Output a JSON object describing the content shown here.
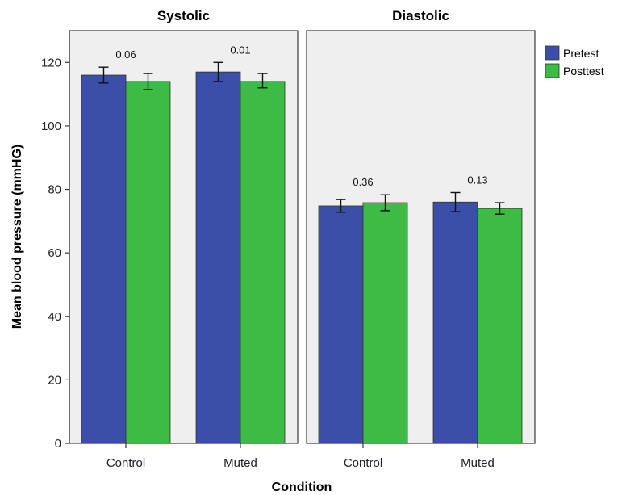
{
  "chart_data": {
    "type": "bar",
    "xlabel": "Condition",
    "ylabel": "Mean blood pressure (mmHG)",
    "ylim": [
      0,
      130
    ],
    "yticks": [
      0,
      20,
      40,
      60,
      80,
      100,
      120
    ],
    "legend": {
      "position": "top-right"
    },
    "colors": {
      "Pretest": "#3b4fa8",
      "Posttest": "#3dbb45"
    },
    "series_names": [
      "Pretest",
      "Posttest"
    ],
    "categories": [
      "Control",
      "Muted"
    ],
    "panels": [
      {
        "title": "Systolic",
        "series": [
          {
            "name": "Pretest",
            "values": [
              116,
              117
            ],
            "error_low": [
              113.5,
              114
            ],
            "error_high": [
              118.5,
              120
            ]
          },
          {
            "name": "Posttest",
            "values": [
              114,
              114
            ],
            "error_low": [
              111.5,
              112
            ],
            "error_high": [
              116.5,
              116.5
            ]
          }
        ],
        "annotations": [
          "0.06",
          "0.01"
        ]
      },
      {
        "title": "Diastolic",
        "series": [
          {
            "name": "Pretest",
            "values": [
              74.8,
              76
            ],
            "error_low": [
              72.8,
              73
            ],
            "error_high": [
              76.8,
              79
            ]
          },
          {
            "name": "Posttest",
            "values": [
              75.8,
              74
            ],
            "error_low": [
              73.3,
              72.2
            ],
            "error_high": [
              78.3,
              75.8
            ]
          }
        ],
        "annotations": [
          "0.36",
          "0.13"
        ]
      }
    ]
  }
}
